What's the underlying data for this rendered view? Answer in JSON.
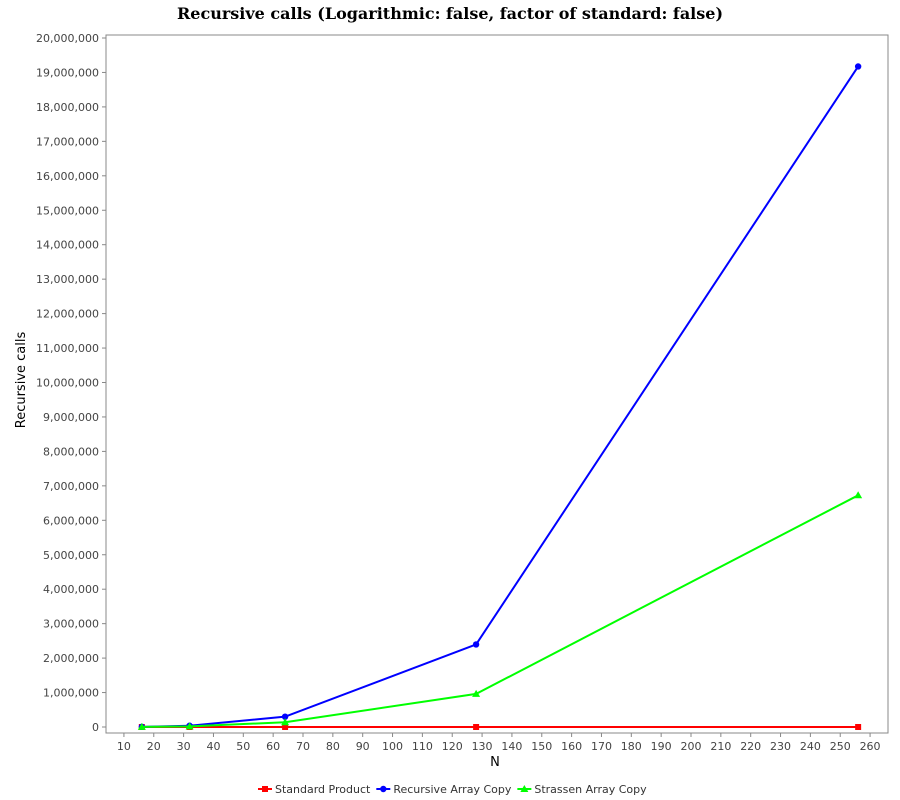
{
  "chart_data": {
    "type": "line",
    "title": "Recursive calls (Logarithmic: false, factor of standard: false)",
    "xlabel": "N",
    "ylabel": "Recursive calls",
    "xlim": [
      5,
      265
    ],
    "ylim": [
      0,
      20000000
    ],
    "xticks": [
      10,
      20,
      30,
      40,
      50,
      60,
      70,
      80,
      90,
      100,
      110,
      120,
      130,
      140,
      150,
      160,
      170,
      180,
      190,
      200,
      210,
      220,
      230,
      240,
      250,
      260
    ],
    "yticks": [
      0,
      1000000,
      2000000,
      3000000,
      4000000,
      5000000,
      6000000,
      7000000,
      8000000,
      9000000,
      10000000,
      11000000,
      12000000,
      13000000,
      14000000,
      15000000,
      16000000,
      17000000,
      18000000,
      19000000,
      20000000
    ],
    "grid": false,
    "legend_position": "bottom",
    "x": [
      16,
      32,
      64,
      128,
      256
    ],
    "series": [
      {
        "name": "Standard Product",
        "color": "#ff0000",
        "marker": "square",
        "values": [
          0,
          0,
          0,
          0,
          0
        ]
      },
      {
        "name": "Recursive Array Copy",
        "color": "#0000ff",
        "marker": "circle",
        "values": [
          4681,
          37449,
          299593,
          2396745,
          19173961
        ]
      },
      {
        "name": "Strassen Array Copy",
        "color": "#00ff00",
        "marker": "triangle",
        "values": [
          2801,
          19608,
          137257,
          960800,
          6725601
        ]
      }
    ]
  }
}
